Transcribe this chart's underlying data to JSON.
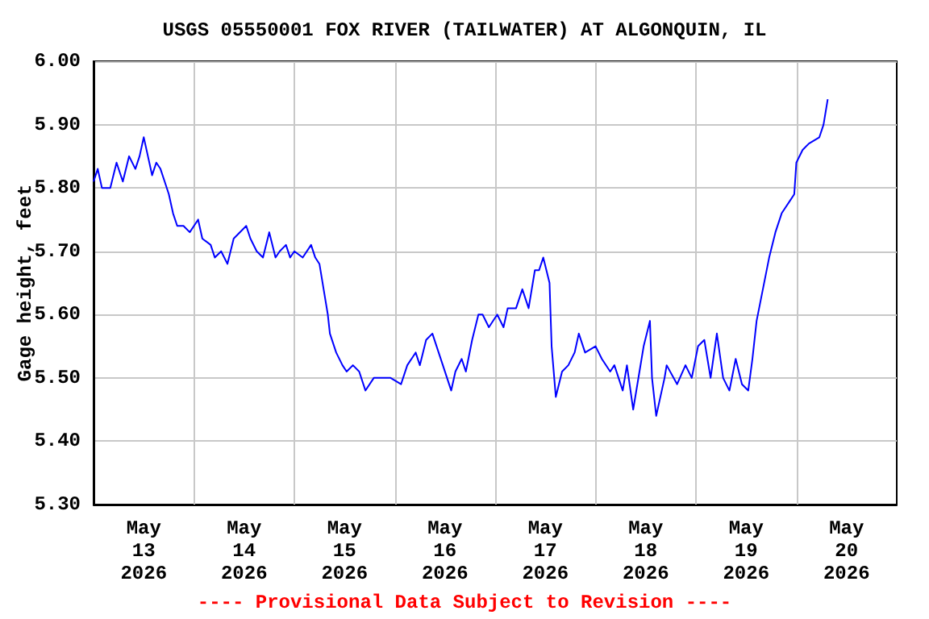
{
  "chart_data": {
    "type": "line",
    "title": "USGS 05550001 FOX RIVER (TAILWATER) AT ALGONQUIN, IL",
    "ylabel": "Gage height, feet",
    "annotations": [
      "---- Provisional Data Subject to Revision ----"
    ],
    "grid": true,
    "marker": "none",
    "line_style": "solid",
    "xlim": [
      "2026-05-13",
      "2026-05-21"
    ],
    "xticks": [
      {
        "value": "2026-05-13T12:00",
        "label": "May\n13\n2026"
      },
      {
        "value": "2026-05-14",
        "label": null
      },
      {
        "value": "2026-05-14T12:00",
        "label": "May\n14\n2026"
      },
      {
        "value": "2026-05-15",
        "label": null
      },
      {
        "value": "2026-05-15T12:00",
        "label": "May\n15\n2026"
      },
      {
        "value": "2026-05-16",
        "label": null
      },
      {
        "value": "2026-05-16T12:00",
        "label": "May\n16\n2026"
      },
      {
        "value": "2026-05-17",
        "label": null
      },
      {
        "value": "2026-05-17T12:00",
        "label": "May\n17\n2026"
      },
      {
        "value": "2026-05-18",
        "label": null
      },
      {
        "value": "2026-05-18T12:00",
        "label": "May\n18\n2026"
      },
      {
        "value": "2026-05-19",
        "label": null
      },
      {
        "value": "2026-05-19T12:00",
        "label": "May\n19\n2026"
      },
      {
        "value": "2026-05-20",
        "label": null
      },
      {
        "value": "2026-05-20T12:00",
        "label": "May\n20\n2026"
      }
    ],
    "ylim": [
      5.3,
      6.0
    ],
    "yticks": [
      {
        "value": 5.3,
        "label": "5.30"
      },
      {
        "value": 5.4,
        "label": "5.40"
      },
      {
        "value": 5.5,
        "label": "5.50"
      },
      {
        "value": 5.6,
        "label": "5.60"
      },
      {
        "value": 5.7,
        "label": "5.70"
      },
      {
        "value": 5.8,
        "label": "5.80"
      },
      {
        "value": 5.9,
        "label": "5.90"
      },
      {
        "value": 6.0,
        "label": "6.00"
      }
    ],
    "series": [
      {
        "color": "#0000ff",
        "x": [
          "2026-05-13T00:00",
          "2026-05-13T01:00",
          "2026-05-13T02:00",
          "2026-05-13T04:00",
          "2026-05-13T05:30",
          "2026-05-13T07:00",
          "2026-05-13T08:30",
          "2026-05-13T10:00",
          "2026-05-13T11:00",
          "2026-05-13T12:00",
          "2026-05-13T13:00",
          "2026-05-13T14:00",
          "2026-05-13T15:00",
          "2026-05-13T16:00",
          "2026-05-13T17:00",
          "2026-05-13T18:00",
          "2026-05-13T19:00",
          "2026-05-13T20:00",
          "2026-05-13T21:30",
          "2026-05-13T23:00",
          "2026-05-14T01:00",
          "2026-05-14T02:00",
          "2026-05-14T04:00",
          "2026-05-14T05:00",
          "2026-05-14T06:30",
          "2026-05-14T08:00",
          "2026-05-14T09:30",
          "2026-05-14T12:30",
          "2026-05-14T13:30",
          "2026-05-14T15:00",
          "2026-05-14T16:30",
          "2026-05-14T18:00",
          "2026-05-14T19:30",
          "2026-05-14T20:30",
          "2026-05-14T22:00",
          "2026-05-14T23:00",
          "2026-05-15T00:00",
          "2026-05-15T02:00",
          "2026-05-15T04:00",
          "2026-05-15T05:00",
          "2026-05-15T06:00",
          "2026-05-15T07:00",
          "2026-05-15T08:00",
          "2026-05-15T08:30",
          "2026-05-15T10:00",
          "2026-05-15T11:30",
          "2026-05-15T12:30",
          "2026-05-15T14:00",
          "2026-05-15T15:30",
          "2026-05-15T17:00",
          "2026-05-15T19:00",
          "2026-05-15T21:00",
          "2026-05-15T23:00",
          "2026-05-16T01:30",
          "2026-05-16T03:00",
          "2026-05-16T05:00",
          "2026-05-16T06:00",
          "2026-05-16T07:30",
          "2026-05-16T09:00",
          "2026-05-16T10:00",
          "2026-05-16T11:30",
          "2026-05-16T12:30",
          "2026-05-16T13:30",
          "2026-05-16T14:30",
          "2026-05-16T16:00",
          "2026-05-16T17:00",
          "2026-05-16T18:30",
          "2026-05-16T20:00",
          "2026-05-16T21:00",
          "2026-05-16T22:30",
          "2026-05-17T00:30",
          "2026-05-17T02:00",
          "2026-05-17T03:00",
          "2026-05-17T05:00",
          "2026-05-17T06:30",
          "2026-05-17T08:00",
          "2026-05-17T09:30",
          "2026-05-17T10:30",
          "2026-05-17T11:30",
          "2026-05-17T13:00",
          "2026-05-17T13:30",
          "2026-05-17T14:30",
          "2026-05-17T16:00",
          "2026-05-17T17:30",
          "2026-05-17T19:00",
          "2026-05-17T20:00",
          "2026-05-17T21:30",
          "2026-05-18T00:00",
          "2026-05-18T01:30",
          "2026-05-18T03:30",
          "2026-05-18T04:30",
          "2026-05-18T06:30",
          "2026-05-18T07:30",
          "2026-05-18T09:00",
          "2026-05-18T10:30",
          "2026-05-18T11:30",
          "2026-05-18T13:00",
          "2026-05-18T13:30",
          "2026-05-18T14:30",
          "2026-05-18T16:30",
          "2026-05-18T17:00",
          "2026-05-18T19:30",
          "2026-05-18T21:30",
          "2026-05-18T23:00",
          "2026-05-19T00:30",
          "2026-05-19T02:00",
          "2026-05-19T03:30",
          "2026-05-19T05:00",
          "2026-05-19T06:30",
          "2026-05-19T08:00",
          "2026-05-19T09:30",
          "2026-05-19T11:00",
          "2026-05-19T12:30",
          "2026-05-19T13:30",
          "2026-05-19T14:30",
          "2026-05-19T16:00",
          "2026-05-19T17:30",
          "2026-05-19T19:00",
          "2026-05-19T20:30",
          "2026-05-19T22:30",
          "2026-05-19T23:30",
          "2026-05-20T00:00",
          "2026-05-20T01:30",
          "2026-05-20T03:00",
          "2026-05-20T05:30",
          "2026-05-20T06:30",
          "2026-05-20T07:30"
        ],
        "values": [
          5.81,
          5.83,
          5.8,
          5.8,
          5.84,
          5.81,
          5.85,
          5.83,
          5.85,
          5.88,
          5.85,
          5.82,
          5.84,
          5.83,
          5.81,
          5.79,
          5.76,
          5.74,
          5.74,
          5.73,
          5.75,
          5.72,
          5.71,
          5.69,
          5.7,
          5.68,
          5.72,
          5.74,
          5.72,
          5.7,
          5.69,
          5.73,
          5.69,
          5.7,
          5.71,
          5.69,
          5.7,
          5.69,
          5.71,
          5.69,
          5.68,
          5.64,
          5.6,
          5.57,
          5.54,
          5.52,
          5.51,
          5.52,
          5.51,
          5.48,
          5.5,
          5.5,
          5.5,
          5.49,
          5.52,
          5.54,
          5.52,
          5.56,
          5.57,
          5.55,
          5.52,
          5.5,
          5.48,
          5.51,
          5.53,
          5.51,
          5.56,
          5.6,
          5.6,
          5.58,
          5.6,
          5.58,
          5.61,
          5.61,
          5.64,
          5.61,
          5.67,
          5.67,
          5.69,
          5.65,
          5.55,
          5.47,
          5.51,
          5.52,
          5.54,
          5.57,
          5.54,
          5.55,
          5.53,
          5.51,
          5.52,
          5.48,
          5.52,
          5.45,
          5.51,
          5.55,
          5.59,
          5.5,
          5.44,
          5.5,
          5.52,
          5.49,
          5.52,
          5.5,
          5.55,
          5.56,
          5.5,
          5.57,
          5.5,
          5.48,
          5.53,
          5.49,
          5.48,
          5.53,
          5.59,
          5.64,
          5.69,
          5.73,
          5.76,
          5.78,
          5.79,
          5.84,
          5.86,
          5.87,
          5.88,
          5.9,
          5.94
        ]
      }
    ]
  }
}
